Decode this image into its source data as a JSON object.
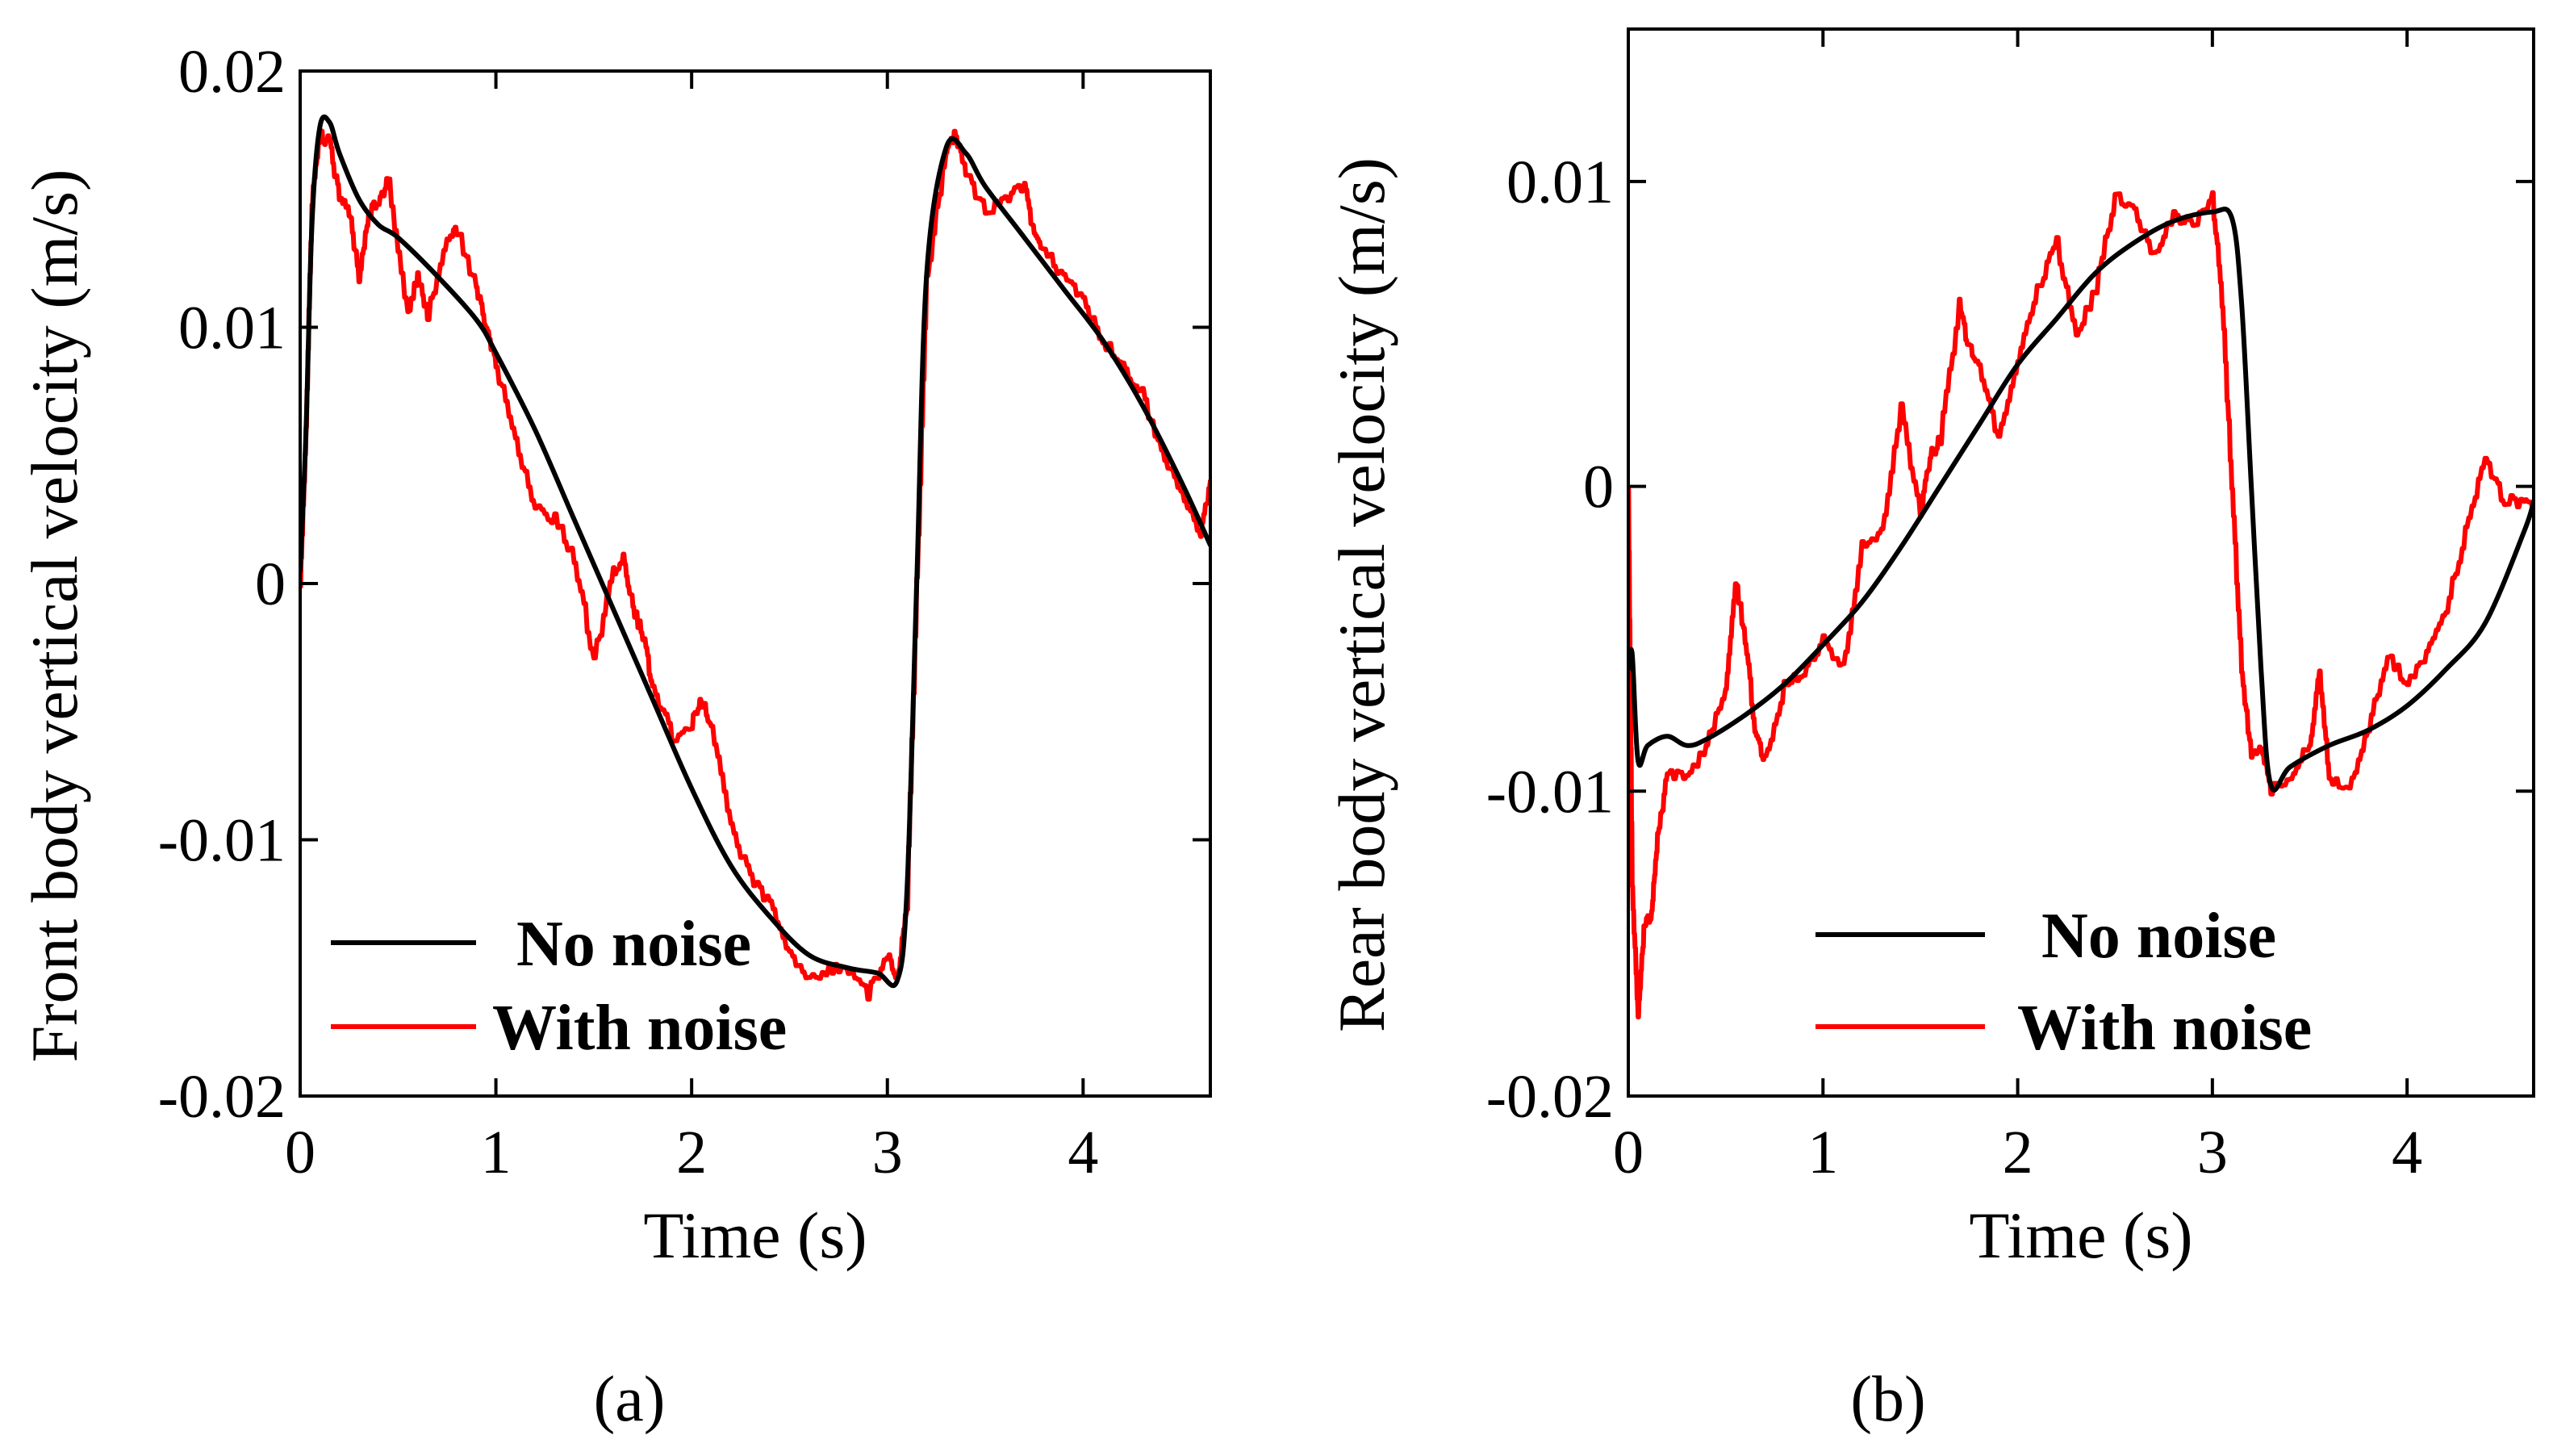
{
  "chart_data": [
    {
      "type": "line",
      "caption": "(a)",
      "xlabel": "Time (s)",
      "ylabel": "Front body vertical  velocity  (m/s)",
      "xlim": [
        0,
        4.65
      ],
      "ylim": [
        -0.02,
        0.02
      ],
      "xticks": [
        0,
        1,
        2,
        3,
        4
      ],
      "xtick_labels": [
        "0",
        "1",
        "2",
        "3",
        "4"
      ],
      "yticks": [
        0.02,
        0.01,
        0,
        -0.01,
        -0.02
      ],
      "ytick_labels": [
        "0.02",
        "0.01",
        "0",
        "-0.01",
        "-0.02"
      ],
      "legend_position": "bottom-left",
      "series": [
        {
          "name": "No noise",
          "color": "#000000",
          "noise": 0,
          "x": [
            0,
            0.03,
            0.06,
            0.1,
            0.15,
            0.2,
            0.3,
            0.4,
            0.5,
            0.7,
            0.9,
            1.0,
            1.2,
            1.4,
            1.6,
            1.8,
            2.0,
            2.2,
            2.4,
            2.6,
            2.8,
            2.95,
            3.05,
            3.1,
            3.15,
            3.2,
            3.3,
            3.4,
            3.5,
            3.7,
            3.9,
            4.1,
            4.3,
            4.5,
            4.65
          ],
          "values": [
            0.0005,
            0.006,
            0.014,
            0.0178,
            0.018,
            0.0168,
            0.015,
            0.014,
            0.0135,
            0.012,
            0.0103,
            0.009,
            0.006,
            0.0025,
            -0.001,
            -0.0045,
            -0.008,
            -0.011,
            -0.013,
            -0.0145,
            -0.015,
            -0.0152,
            -0.0155,
            -0.012,
            0.0,
            0.012,
            0.017,
            0.0168,
            0.0155,
            0.0135,
            0.0115,
            0.0095,
            0.007,
            0.004,
            0.0015
          ]
        },
        {
          "name": "With noise",
          "color": "#ff0000",
          "noise": 1,
          "x": [
            0,
            0.03,
            0.06,
            0.1,
            0.15,
            0.2,
            0.25,
            0.3,
            0.35,
            0.4,
            0.45,
            0.55,
            0.6,
            0.65,
            0.75,
            0.8,
            0.9,
            0.95,
            1.0,
            1.1,
            1.2,
            1.3,
            1.4,
            1.5,
            1.6,
            1.65,
            1.7,
            1.75,
            1.8,
            1.9,
            2.0,
            2.05,
            2.1,
            2.2,
            2.3,
            2.4,
            2.5,
            2.6,
            2.7,
            2.8,
            2.9,
            3.0,
            3.05,
            3.1,
            3.15,
            3.2,
            3.3,
            3.35,
            3.4,
            3.5,
            3.6,
            3.7,
            3.75,
            3.8,
            3.9,
            4.0,
            4.1,
            4.2,
            4.3,
            4.4,
            4.5,
            4.6,
            4.65
          ],
          "values": [
            0.0,
            0.006,
            0.015,
            0.0175,
            0.0172,
            0.015,
            0.0145,
            0.012,
            0.0145,
            0.015,
            0.0157,
            0.0105,
            0.012,
            0.0105,
            0.0135,
            0.0138,
            0.0115,
            0.01,
            0.0085,
            0.0055,
            0.003,
            0.0025,
            0.001,
            -0.003,
            0.0005,
            0.001,
            -0.001,
            -0.002,
            -0.004,
            -0.006,
            -0.0055,
            -0.0045,
            -0.0055,
            -0.0095,
            -0.0115,
            -0.0125,
            -0.0145,
            -0.0155,
            -0.015,
            -0.015,
            -0.016,
            -0.0145,
            -0.0155,
            -0.0125,
            0.0,
            0.012,
            0.017,
            0.0175,
            0.016,
            0.0145,
            0.015,
            0.0155,
            0.0135,
            0.013,
            0.012,
            0.011,
            0.0095,
            0.0085,
            0.0075,
            0.005,
            0.0035,
            0.002,
            0.004
          ]
        }
      ]
    },
    {
      "type": "line",
      "caption": "(b)",
      "xlabel": "Time (s)",
      "ylabel": "Rear body vertical  velocity  (m/s)",
      "xlim": [
        0,
        4.65
      ],
      "ylim": [
        -0.02,
        0.015
      ],
      "xticks": [
        0,
        1,
        2,
        3,
        4
      ],
      "xtick_labels": [
        "0",
        "1",
        "2",
        "3",
        "4"
      ],
      "yticks": [
        0.01,
        0,
        -0.01,
        -0.02
      ],
      "ytick_labels": [
        "0.01",
        "0",
        "-0.01",
        "-0.02"
      ],
      "legend_position": "bottom-center",
      "series": [
        {
          "name": "No noise",
          "color": "#000000",
          "noise": 0,
          "x": [
            0,
            0.02,
            0.05,
            0.1,
            0.2,
            0.3,
            0.4,
            0.6,
            0.8,
            1.0,
            1.2,
            1.4,
            1.6,
            1.8,
            2.0,
            2.2,
            2.4,
            2.6,
            2.8,
            3.0,
            3.1,
            3.15,
            3.2,
            3.25,
            3.3,
            3.4,
            3.6,
            3.8,
            4.0,
            4.2,
            4.4,
            4.6,
            4.65
          ],
          "values": [
            -0.006,
            -0.0055,
            -0.009,
            -0.0085,
            -0.0082,
            -0.0085,
            -0.0083,
            -0.0075,
            -0.0065,
            -0.0052,
            -0.0038,
            -0.002,
            0.0,
            0.002,
            0.004,
            0.0055,
            0.007,
            0.008,
            0.0087,
            0.009,
            0.0088,
            0.006,
            0.0,
            -0.006,
            -0.0098,
            -0.0092,
            -0.0085,
            -0.008,
            -0.0072,
            -0.006,
            -0.0045,
            -0.0015,
            -0.0005
          ]
        },
        {
          "name": "With noise",
          "color": "#ff0000",
          "noise": 1,
          "x": [
            0,
            0.02,
            0.05,
            0.08,
            0.12,
            0.15,
            0.2,
            0.3,
            0.4,
            0.5,
            0.55,
            0.6,
            0.65,
            0.7,
            0.8,
            0.9,
            1.0,
            1.1,
            1.2,
            1.3,
            1.4,
            1.5,
            1.55,
            1.6,
            1.7,
            1.75,
            1.8,
            1.9,
            2.0,
            2.1,
            2.2,
            2.3,
            2.4,
            2.5,
            2.6,
            2.7,
            2.8,
            2.9,
            3.0,
            3.05,
            3.1,
            3.15,
            3.2,
            3.25,
            3.3,
            3.4,
            3.5,
            3.55,
            3.6,
            3.7,
            3.8,
            3.9,
            4.0,
            4.1,
            4.2,
            4.3,
            4.4,
            4.5,
            4.6,
            4.65
          ],
          "values": [
            0.0,
            -0.013,
            -0.0175,
            -0.0145,
            -0.014,
            -0.0115,
            -0.0095,
            -0.0095,
            -0.0085,
            -0.0065,
            -0.003,
            -0.005,
            -0.008,
            -0.009,
            -0.0065,
            -0.006,
            -0.005,
            -0.006,
            -0.002,
            -0.0015,
            0.0025,
            -0.001,
            0.001,
            0.0015,
            0.006,
            0.0045,
            0.004,
            0.0015,
            0.004,
            0.0065,
            0.008,
            0.005,
            0.0065,
            0.0095,
            0.009,
            0.0075,
            0.009,
            0.0085,
            0.0095,
            0.006,
            0.0,
            -0.006,
            -0.009,
            -0.0085,
            -0.01,
            -0.0095,
            -0.0085,
            -0.006,
            -0.0095,
            -0.01,
            -0.008,
            -0.0055,
            -0.0065,
            -0.0055,
            -0.004,
            -0.0015,
            0.001,
            -0.0005,
            -0.0005,
            -0.0005
          ]
        }
      ]
    }
  ]
}
